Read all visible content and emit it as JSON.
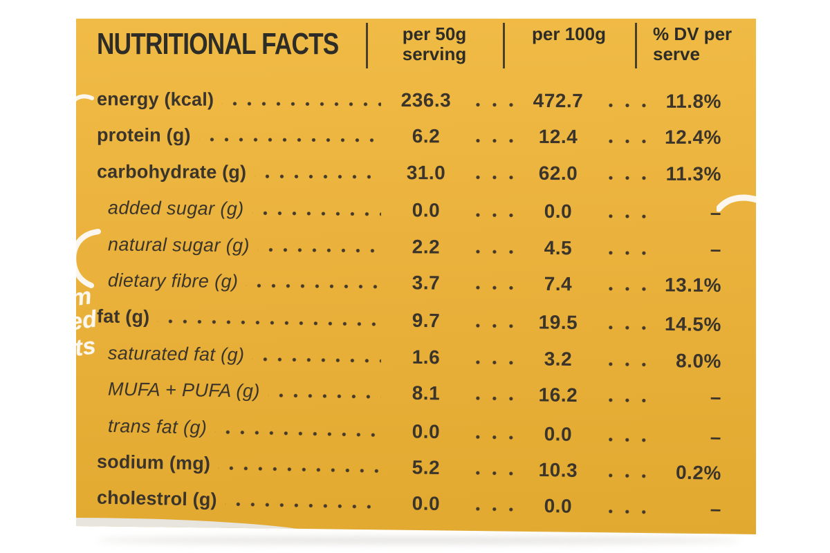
{
  "title": "NUTRITIONAL FACTS",
  "columns": [
    {
      "line1": "per 50g",
      "line2": "serving"
    },
    {
      "line1": "per 100g",
      "line2": ""
    },
    {
      "line1": "% DV per",
      "line2": "serve"
    }
  ],
  "rows": [
    {
      "label": "energy (kcal)",
      "per50": "236.3",
      "per100": "472.7",
      "dv": "11.8%",
      "indent": false,
      "italic": false
    },
    {
      "label": "protein (g)",
      "per50": "6.2",
      "per100": "12.4",
      "dv": "12.4%",
      "indent": false,
      "italic": false
    },
    {
      "label": "carbohydrate (g)",
      "per50": "31.0",
      "per100": "62.0",
      "dv": "11.3%",
      "indent": false,
      "italic": false
    },
    {
      "label": "added sugar (g)",
      "per50": "0.0",
      "per100": "0.0",
      "dv": "–",
      "indent": true,
      "italic": true
    },
    {
      "label": "natural sugar (g)",
      "per50": "2.2",
      "per100": "4.5",
      "dv": "–",
      "indent": true,
      "italic": true
    },
    {
      "label": "dietary fibre (g)",
      "per50": "3.7",
      "per100": "7.4",
      "dv": "13.1%",
      "indent": true,
      "italic": true
    },
    {
      "label": "fat (g)",
      "per50": "9.7",
      "per100": "19.5",
      "dv": "14.5%",
      "indent": false,
      "italic": false
    },
    {
      "label": "saturated fat (g)",
      "per50": "1.6",
      "per100": "3.2",
      "dv": "8.0%",
      "indent": true,
      "italic": true
    },
    {
      "label": "MUFA + PUFA (g)",
      "per50": "8.1",
      "per100": "16.2",
      "dv": "–",
      "indent": true,
      "italic": true
    },
    {
      "label": "trans fat (g)",
      "per50": "0.0",
      "per100": "0.0",
      "dv": "–",
      "indent": true,
      "italic": true
    },
    {
      "label": "sodium (mg)",
      "per50": "5.2",
      "per100": "10.3",
      "dv": "0.2%",
      "indent": false,
      "italic": false
    },
    {
      "label": "cholestrol (g)",
      "per50": "0.0",
      "per100": "0.0",
      "dv": "–",
      "indent": false,
      "italic": false
    }
  ],
  "decorations": {
    "fragments": [
      "m",
      "ed",
      "ts"
    ]
  },
  "colors": {
    "label_bg": "#EAB23C",
    "label_bg_light": "#F0BB46",
    "label_bg_dark": "#E2A930",
    "ink": "#3A342B",
    "title_ink": "#2E2C27",
    "page_bg": "#FFFFFF",
    "fragment": "#FBF7EE"
  }
}
